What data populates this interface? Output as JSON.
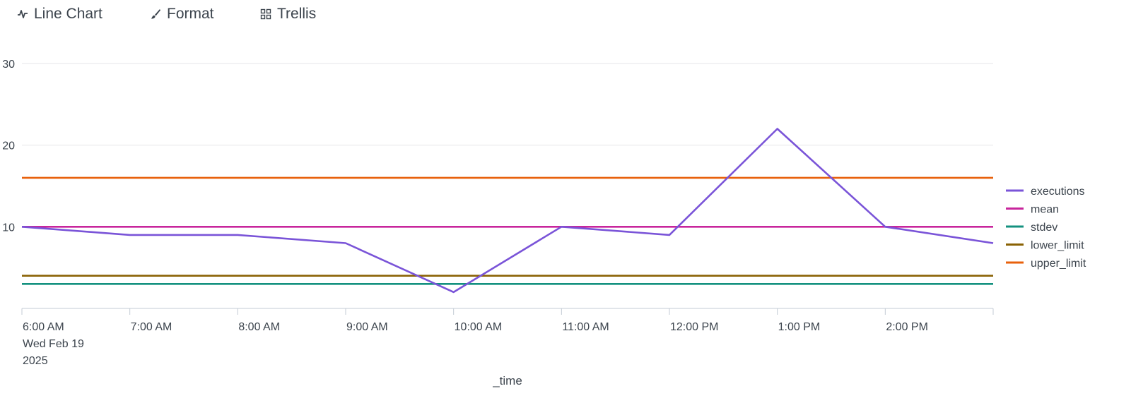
{
  "toolbar": {
    "line_chart_label": "Line Chart",
    "format_label": "Format",
    "trellis_label": "Trellis"
  },
  "chart_data": {
    "type": "line",
    "title": "",
    "xlabel": "_time",
    "ylabel": "",
    "ylim": [
      0,
      30
    ],
    "yticks": [
      10,
      20,
      30
    ],
    "grid": true,
    "legend_position": "right",
    "x": [
      "2025-02-19 06:00",
      "2025-02-19 07:00",
      "2025-02-19 08:00",
      "2025-02-19 09:00",
      "2025-02-19 10:00",
      "2025-02-19 11:00",
      "2025-02-19 12:00",
      "2025-02-19 13:00",
      "2025-02-19 14:00",
      "2025-02-19 15:00"
    ],
    "x_tick_labels": [
      [
        "6:00 AM",
        "Wed Feb 19",
        "2025"
      ],
      [
        "7:00 AM"
      ],
      [
        "8:00 AM"
      ],
      [
        "9:00 AM"
      ],
      [
        "10:00 AM"
      ],
      [
        "11:00 AM"
      ],
      [
        "12:00 PM"
      ],
      [
        "1:00 PM"
      ],
      [
        "2:00 PM"
      ]
    ],
    "series": [
      {
        "name": "executions",
        "color": "#7a54d8",
        "values": [
          10,
          9,
          9,
          8,
          2,
          10,
          9,
          22,
          10,
          8
        ]
      },
      {
        "name": "mean",
        "color": "#c8259c",
        "values": [
          10,
          10,
          10,
          10,
          10,
          10,
          10,
          10,
          10,
          10
        ]
      },
      {
        "name": "stdev",
        "color": "#14917f",
        "values": [
          3,
          3,
          3,
          3,
          3,
          3,
          3,
          3,
          3,
          3
        ]
      },
      {
        "name": "lower_limit",
        "color": "#8a6204",
        "values": [
          4,
          4,
          4,
          4,
          4,
          4,
          4,
          4,
          4,
          4
        ]
      },
      {
        "name": "upper_limit",
        "color": "#e8610c",
        "values": [
          16,
          16,
          16,
          16,
          16,
          16,
          16,
          16,
          16,
          16
        ]
      }
    ]
  }
}
